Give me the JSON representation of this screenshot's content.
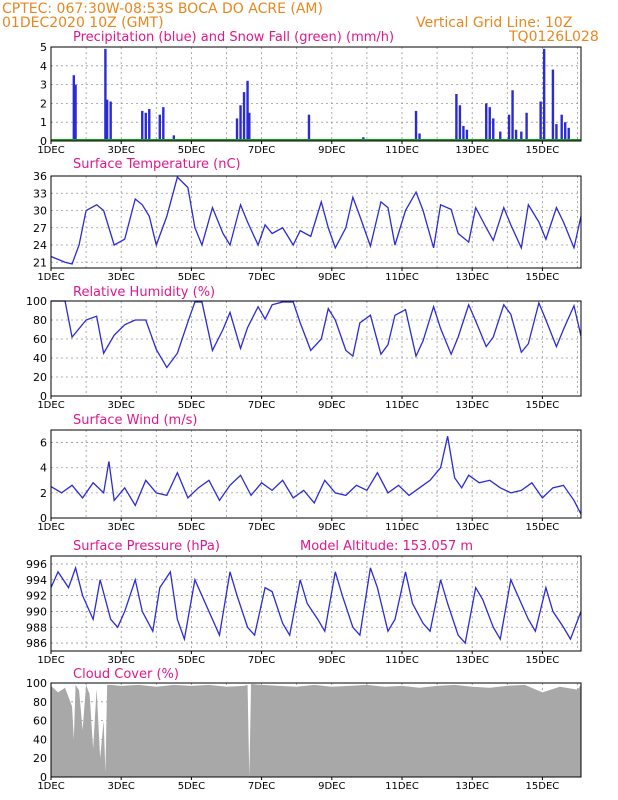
{
  "header": {
    "line1": "CPTEC:   067:30W-08:53S   BOCA DO ACRE (AM)",
    "line2": "01DEC2020 10Z (GMT)",
    "grid_note": "Vertical Grid Line: 10Z",
    "code": "TQ0126L028"
  },
  "colors": {
    "header": "#e8871e",
    "title": "#e0188c",
    "series": "#2b2bd6",
    "snow": "#1a9a1a",
    "cloud": "#a8a8a8"
  },
  "x_ticks": [
    "1DEC",
    "3DEC",
    "5DEC",
    "7DEC",
    "9DEC",
    "11DEC",
    "13DEC",
    "15DEC"
  ],
  "chart_data": [
    {
      "type": "bar",
      "title": "Precipitation (blue) and Snow Fall (green) (mm/h)",
      "ylim": [
        0,
        5
      ],
      "yticks": [
        "0",
        "1",
        "2",
        "3",
        "4",
        "5"
      ],
      "x": [
        0.65,
        0.7,
        1.55,
        1.6,
        1.7,
        2.6,
        2.7,
        2.8,
        3.1,
        3.2,
        3.5,
        5.3,
        5.4,
        5.5,
        5.6,
        5.65,
        7.35,
        8.9,
        10.4,
        10.5,
        11.55,
        11.65,
        11.75,
        11.85,
        12.4,
        12.5,
        12.6,
        12.8,
        13.05,
        13.15,
        13.25,
        13.4,
        13.55,
        13.95,
        14.05,
        14.3,
        14.4,
        14.55,
        14.65,
        14.75
      ],
      "values": [
        3.5,
        3.0,
        4.9,
        2.2,
        2.1,
        1.6,
        1.5,
        1.7,
        1.4,
        1.8,
        0.3,
        1.2,
        1.9,
        2.6,
        3.2,
        1.5,
        1.4,
        0.2,
        1.6,
        0.4,
        2.5,
        1.9,
        0.8,
        0.6,
        2.0,
        1.8,
        1.2,
        0.5,
        1.4,
        2.7,
        0.6,
        0.5,
        1.5,
        2.1,
        4.9,
        3.8,
        0.9,
        1.4,
        1.0,
        0.7
      ],
      "snow": 0
    },
    {
      "type": "line",
      "title": "Surface Temperature (nC)",
      "ylim": [
        20,
        36
      ],
      "yticks": [
        "21",
        "24",
        "27",
        "30",
        "33",
        "36"
      ],
      "x": [
        0,
        0.4,
        0.6,
        0.8,
        1.0,
        1.3,
        1.5,
        1.8,
        2.1,
        2.4,
        2.6,
        2.8,
        3.0,
        3.3,
        3.6,
        3.9,
        4.1,
        4.3,
        4.6,
        4.9,
        5.1,
        5.4,
        5.6,
        5.9,
        6.1,
        6.3,
        6.6,
        6.9,
        7.1,
        7.4,
        7.7,
        7.9,
        8.1,
        8.4,
        8.6,
        8.8,
        9.1,
        9.4,
        9.6,
        9.8,
        10.1,
        10.4,
        10.6,
        10.9,
        11.1,
        11.4,
        11.6,
        11.9,
        12.1,
        12.4,
        12.6,
        12.9,
        13.1,
        13.4,
        13.6,
        13.9,
        14.1,
        14.4,
        14.6,
        14.9,
        15.1
      ],
      "values": [
        22,
        21,
        20.7,
        24,
        30,
        31,
        30,
        24,
        25,
        32,
        31,
        29,
        24,
        29,
        35.8,
        34,
        27,
        24,
        30.5,
        26,
        24,
        31,
        28,
        24,
        27.5,
        26,
        27,
        24,
        26.5,
        25.5,
        31.5,
        27,
        23.5,
        27,
        32.3,
        29,
        23.8,
        31.5,
        30.5,
        24,
        30,
        33.2,
        30,
        23.5,
        31,
        30.2,
        26,
        24.5,
        30.5,
        27,
        24.8,
        30.5,
        27.5,
        23.5,
        31,
        28,
        25,
        30.5,
        28,
        23.5,
        29
      ]
    },
    {
      "type": "line",
      "title": "Relative Humidity (%)",
      "ylim": [
        0,
        100
      ],
      "yticks": [
        "0",
        "20",
        "40",
        "60",
        "80",
        "100"
      ],
      "x": [
        0,
        0.4,
        0.6,
        1.0,
        1.3,
        1.5,
        1.8,
        2.1,
        2.4,
        2.7,
        3.0,
        3.3,
        3.6,
        3.9,
        4.1,
        4.3,
        4.6,
        4.9,
        5.1,
        5.4,
        5.6,
        5.9,
        6.1,
        6.3,
        6.6,
        6.9,
        7.1,
        7.4,
        7.7,
        7.9,
        8.1,
        8.4,
        8.6,
        8.8,
        9.1,
        9.4,
        9.6,
        9.8,
        10.1,
        10.4,
        10.6,
        10.9,
        11.1,
        11.4,
        11.6,
        11.9,
        12.1,
        12.4,
        12.6,
        12.9,
        13.1,
        13.4,
        13.6,
        13.9,
        14.1,
        14.4,
        14.6,
        14.9,
        15.1
      ],
      "values": [
        100,
        100,
        62,
        80,
        84,
        45,
        64,
        75,
        80,
        80,
        49,
        30,
        45,
        78,
        99,
        99,
        48,
        70,
        88,
        50,
        72,
        94,
        81,
        96,
        99,
        99,
        77,
        48,
        60,
        92,
        80,
        48,
        42,
        77,
        85,
        44,
        54,
        85,
        91,
        42,
        58,
        94,
        71,
        44,
        62,
        96,
        79,
        52,
        62,
        96,
        86,
        46,
        55,
        98,
        80,
        52,
        70,
        95,
        63
      ]
    },
    {
      "type": "line",
      "title": "Surface Wind (m/s)",
      "ylim": [
        0,
        7
      ],
      "yticks": [
        "0",
        "2",
        "4",
        "6"
      ],
      "x": [
        0,
        0.3,
        0.6,
        0.9,
        1.2,
        1.5,
        1.65,
        1.8,
        2.1,
        2.4,
        2.7,
        3.0,
        3.3,
        3.6,
        3.9,
        4.2,
        4.5,
        4.8,
        5.1,
        5.4,
        5.7,
        6.0,
        6.3,
        6.6,
        6.9,
        7.2,
        7.5,
        7.8,
        8.1,
        8.4,
        8.7,
        9.0,
        9.3,
        9.6,
        9.9,
        10.2,
        10.5,
        10.8,
        11.1,
        11.3,
        11.5,
        11.7,
        11.9,
        12.2,
        12.5,
        12.8,
        13.1,
        13.4,
        13.7,
        14.0,
        14.3,
        14.6,
        14.9,
        15.1
      ],
      "values": [
        2.5,
        2.0,
        2.6,
        1.6,
        2.8,
        2.0,
        4.5,
        1.4,
        2.4,
        1.0,
        3.0,
        2.0,
        1.8,
        3.6,
        1.6,
        2.4,
        3.0,
        1.4,
        2.6,
        3.4,
        1.8,
        2.8,
        2.2,
        3.0,
        1.6,
        2.2,
        1.2,
        3.0,
        2.0,
        1.8,
        2.6,
        2.2,
        3.6,
        2.0,
        2.6,
        1.8,
        2.4,
        3.0,
        4.0,
        6.5,
        3.2,
        2.4,
        3.4,
        2.8,
        3.0,
        2.4,
        2.0,
        2.2,
        2.8,
        1.6,
        2.4,
        2.6,
        1.4,
        0.3
      ]
    },
    {
      "type": "line",
      "title": "Surface Pressure (hPa)",
      "note": "Model Altitude: 153.057 m",
      "ylim": [
        985,
        997
      ],
      "yticks": [
        "986",
        "988",
        "990",
        "992",
        "994",
        "996"
      ],
      "x": [
        0,
        0.2,
        0.5,
        0.7,
        0.9,
        1.2,
        1.4,
        1.7,
        1.9,
        2.1,
        2.4,
        2.6,
        2.9,
        3.1,
        3.4,
        3.6,
        3.8,
        4.1,
        4.3,
        4.6,
        4.8,
        5.1,
        5.3,
        5.6,
        5.8,
        6.1,
        6.3,
        6.6,
        6.8,
        7.1,
        7.3,
        7.6,
        7.8,
        8.1,
        8.3,
        8.6,
        8.8,
        9.1,
        9.3,
        9.6,
        9.8,
        10.1,
        10.3,
        10.6,
        10.8,
        11.1,
        11.3,
        11.6,
        11.8,
        12.1,
        12.3,
        12.6,
        12.8,
        13.1,
        13.3,
        13.6,
        13.8,
        14.1,
        14.3,
        14.6,
        14.8,
        15.1
      ],
      "values": [
        993,
        995,
        993,
        995.5,
        992,
        989,
        994,
        989,
        988,
        990,
        994,
        990,
        987.5,
        993,
        995,
        989,
        986.5,
        994,
        992,
        989,
        987,
        995,
        992,
        988,
        987,
        993,
        992.5,
        988.5,
        987,
        994,
        991,
        989,
        987.5,
        995,
        992,
        988,
        987,
        995.5,
        993,
        987.5,
        989,
        995,
        991,
        988.5,
        987.5,
        994,
        991,
        987,
        986,
        993,
        991.5,
        988,
        986.5,
        994,
        992,
        989,
        987.5,
        993,
        990,
        988,
        986.5,
        990
      ]
    },
    {
      "type": "area",
      "title": "Cloud Cover (%)",
      "ylim": [
        0,
        100
      ],
      "yticks": [
        "0",
        "20",
        "40",
        "60",
        "80",
        "100"
      ],
      "x": [
        0,
        0.2,
        0.4,
        0.5,
        0.6,
        0.65,
        0.7,
        0.8,
        0.9,
        1.0,
        1.1,
        1.2,
        1.3,
        1.4,
        1.5,
        1.55,
        1.6,
        1.7,
        2.0,
        2.5,
        3.0,
        3.5,
        4.0,
        4.5,
        5.0,
        5.5,
        5.6,
        5.65,
        5.7,
        6.0,
        6.5,
        7.0,
        7.5,
        8.0,
        8.5,
        9.0,
        9.5,
        10.0,
        10.5,
        11.0,
        11.5,
        12.0,
        12.5,
        13.0,
        13.5,
        14.0,
        14.5,
        15.0,
        15.1
      ],
      "values": [
        97,
        90,
        95,
        85,
        75,
        40,
        98,
        92,
        50,
        98,
        88,
        30,
        94,
        20,
        60,
        5,
        98,
        98,
        97,
        98,
        96,
        98,
        97,
        98,
        96,
        97,
        98,
        0,
        99,
        98,
        97,
        96,
        98,
        96,
        97,
        98,
        96,
        97,
        95,
        97,
        98,
        96,
        95,
        97,
        98,
        90,
        96,
        93,
        98
      ]
    }
  ]
}
